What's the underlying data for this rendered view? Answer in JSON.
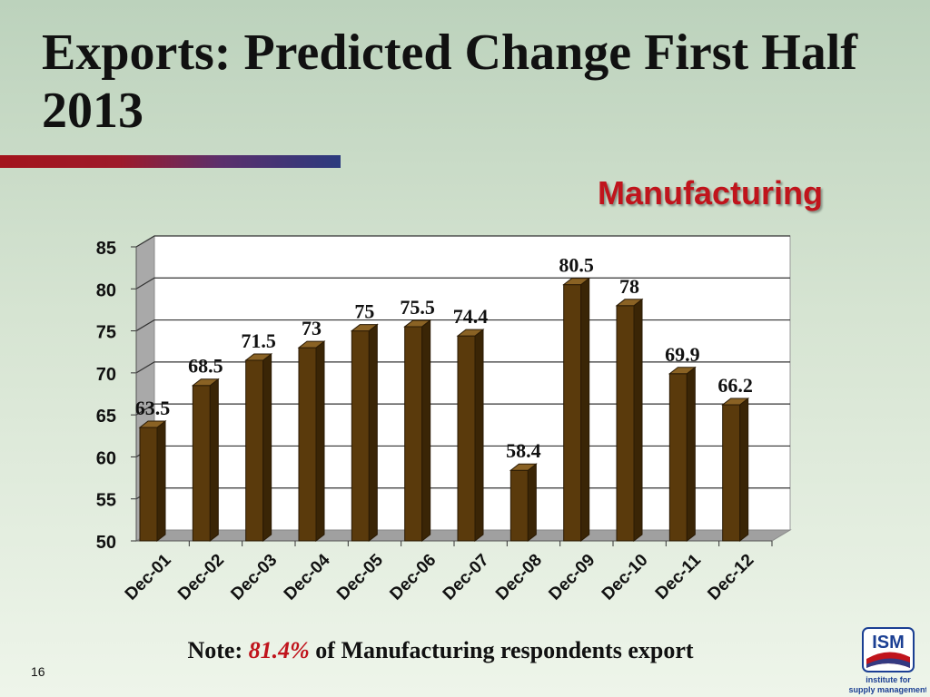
{
  "slide": {
    "title": "Exports: Predicted Change First Half 2013",
    "page_number": "16",
    "note": {
      "prefix": "Note:",
      "highlight": "81.4%",
      "suffix": "of Manufacturing respondents export"
    },
    "logo": {
      "name": "ISM",
      "tagline_line1": "institute for",
      "tagline_line2": "supply management"
    },
    "colors": {
      "accent_red": "#c0141c",
      "bar_fill": "#5a3a0c",
      "title_rule_start": "#a3141c",
      "title_rule_end": "#2b3a7e",
      "logo_blue": "#1b3f93"
    }
  },
  "chart_data": {
    "type": "bar",
    "title": "Manufacturing",
    "categories": [
      "Dec-01",
      "Dec-02",
      "Dec-03",
      "Dec-04",
      "Dec-05",
      "Dec-06",
      "Dec-07",
      "Dec-08",
      "Dec-09",
      "Dec-10",
      "Dec-11",
      "Dec-12"
    ],
    "values": [
      63.5,
      68.5,
      71.5,
      73,
      75,
      75.5,
      74.4,
      58.4,
      80.5,
      78,
      69.9,
      66.2
    ],
    "data_labels": [
      "63.5",
      "68.5",
      "71.5",
      "73",
      "75",
      "75.5",
      "74.4",
      "58.4",
      "80.5",
      "78",
      "69.9",
      "66.2"
    ],
    "ylim": [
      50,
      85
    ],
    "yticks": [
      50,
      55,
      60,
      65,
      70,
      75,
      80,
      85
    ],
    "xlabel": "",
    "ylabel": "",
    "grid": true,
    "legend": "none",
    "style": "3d"
  }
}
